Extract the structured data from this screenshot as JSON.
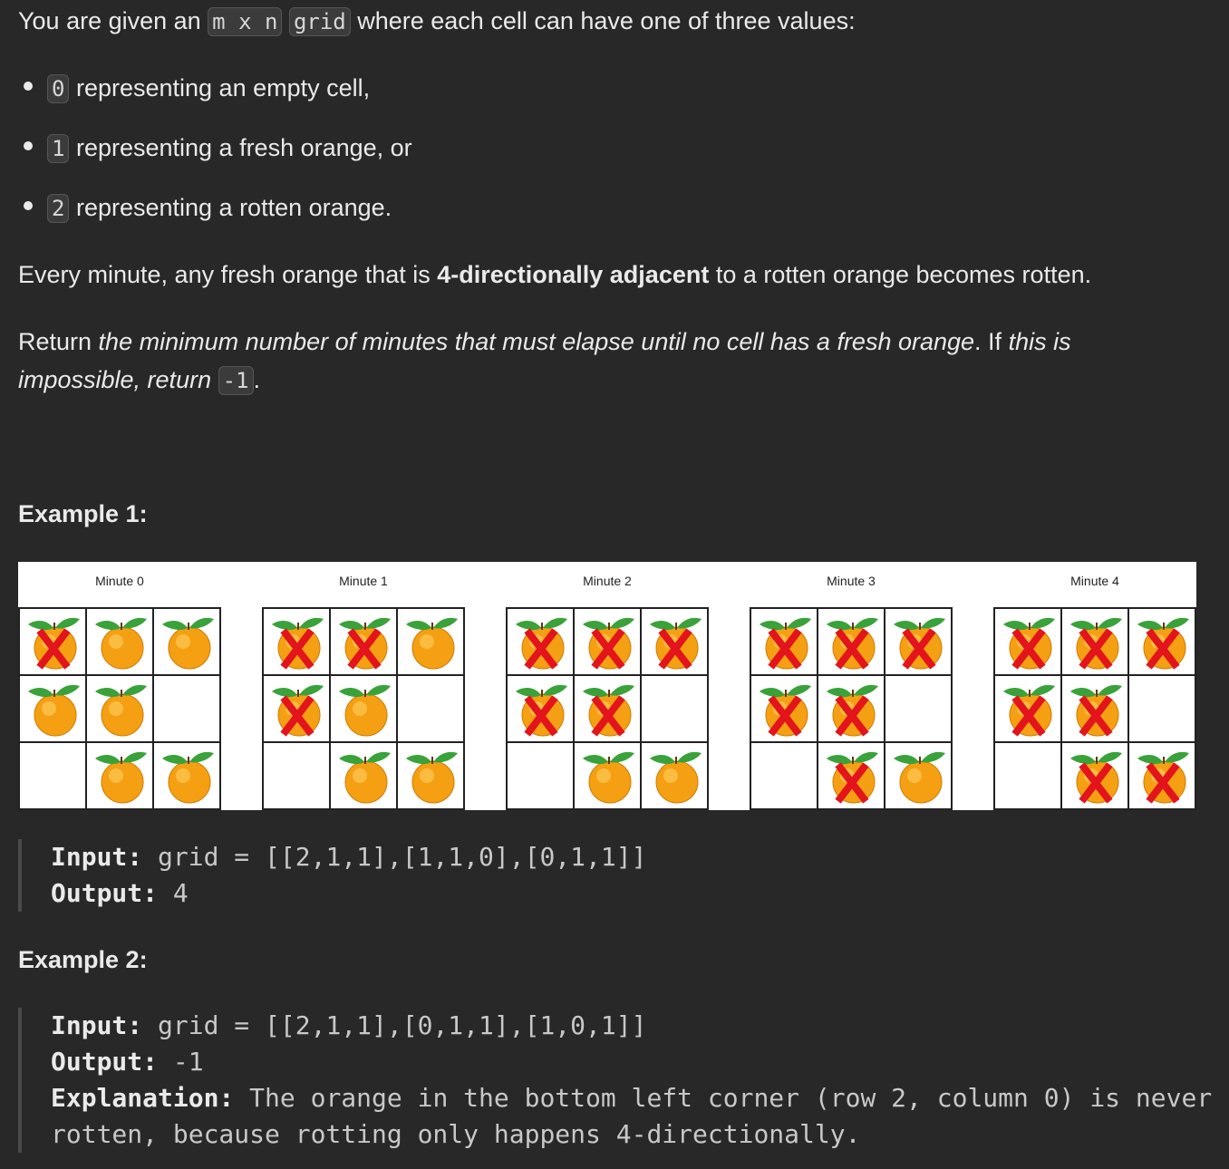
{
  "intro": {
    "pre": "You are given an ",
    "code1": "m x n",
    "code2": "grid",
    "post": " where each cell can have one of three values:"
  },
  "values": [
    {
      "code": "0",
      "text": " representing an empty cell,"
    },
    {
      "code": "1",
      "text": " representing a fresh orange, or"
    },
    {
      "code": "2",
      "text": " representing a rotten orange."
    }
  ],
  "rule": {
    "pre": "Every minute, any fresh orange that is ",
    "bold": "4-directionally adjacent",
    "post": " to a rotten orange becomes rotten."
  },
  "ret": {
    "pre": "Return ",
    "em1": "the minimum number of minutes that must elapse until no cell has a fresh orange",
    "mid": ". If ",
    "em2": "this is impossible, return",
    "code": "-1",
    "post": "."
  },
  "example1": {
    "title": "Example 1:",
    "panels": [
      {
        "label": "Minute 0",
        "grid": [
          [
            2,
            1,
            1
          ],
          [
            1,
            1,
            0
          ],
          [
            0,
            1,
            1
          ]
        ]
      },
      {
        "label": "Minute 1",
        "grid": [
          [
            2,
            2,
            1
          ],
          [
            2,
            1,
            0
          ],
          [
            0,
            1,
            1
          ]
        ]
      },
      {
        "label": "Minute 2",
        "grid": [
          [
            2,
            2,
            2
          ],
          [
            2,
            2,
            0
          ],
          [
            0,
            1,
            1
          ]
        ]
      },
      {
        "label": "Minute 3",
        "grid": [
          [
            2,
            2,
            2
          ],
          [
            2,
            2,
            0
          ],
          [
            0,
            2,
            1
          ]
        ]
      },
      {
        "label": "Minute 4",
        "grid": [
          [
            2,
            2,
            2
          ],
          [
            2,
            2,
            0
          ],
          [
            0,
            2,
            2
          ]
        ]
      }
    ],
    "input_label": "Input:",
    "input_value": " grid = [[2,1,1],[1,1,0],[0,1,1]]",
    "output_label": "Output:",
    "output_value": " 4"
  },
  "example2": {
    "title": "Example 2:",
    "input_label": "Input:",
    "input_value": " grid = [[2,1,1],[0,1,1],[1,0,1]]",
    "output_label": "Output:",
    "output_value": " -1",
    "explanation_label": "Explanation:",
    "explanation_line1": " The orange in the bottom left corner (row 2, column 0) is never",
    "explanation_line2": "rotten, because rotting only happens 4-directionally."
  },
  "colors": {
    "background": "#282828",
    "orange": "#f5a012",
    "leaf": "#3aa23a",
    "rotten_mark": "#e3141c"
  }
}
